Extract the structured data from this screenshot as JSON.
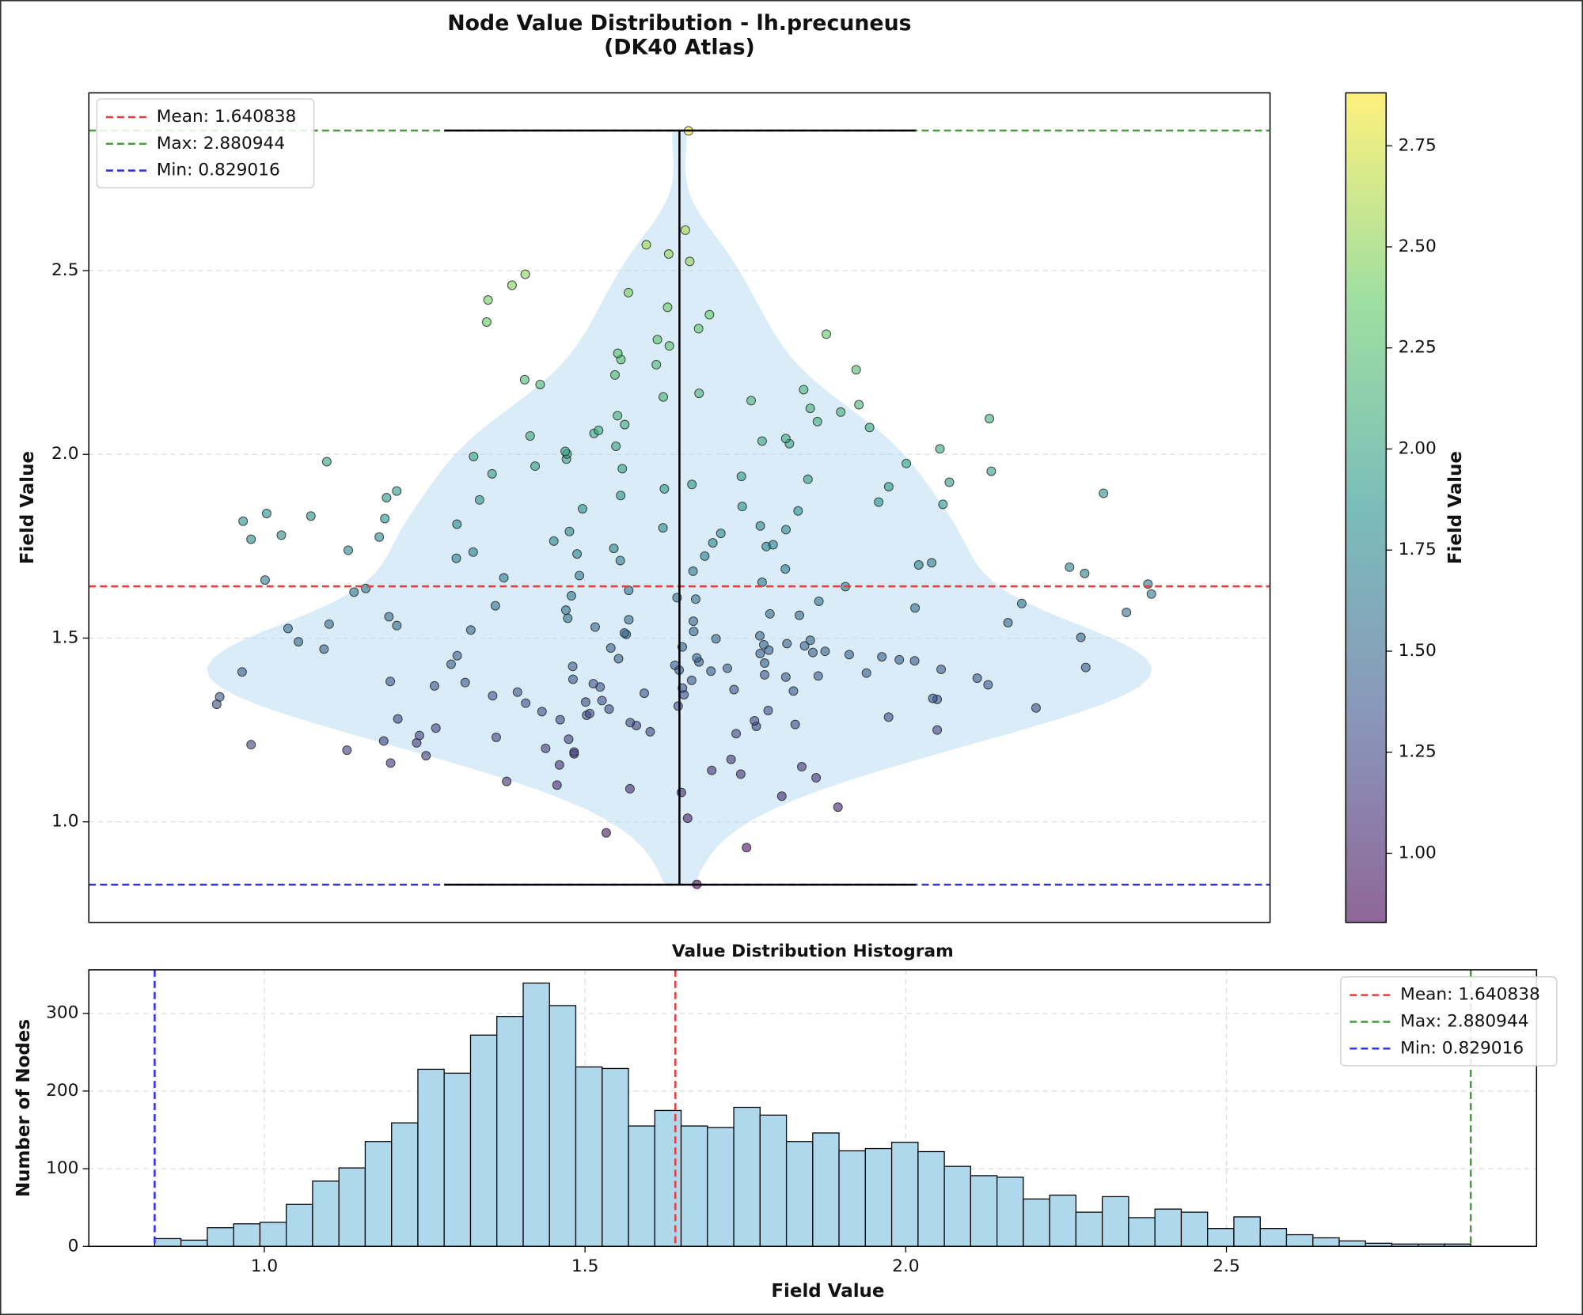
{
  "chart_data": [
    {
      "type": "violin",
      "title": "Node Value Distribution - lh.precuneus",
      "subtitle": "(DK40 Atlas)",
      "y_label": "Field Value",
      "ylim": [
        0.7264,
        2.9835
      ],
      "yticks": [
        {
          "value": 1,
          "label": "1.0"
        },
        1.5,
        {
          "value": 2,
          "label": "2.0"
        },
        2.5
      ],
      "grid": true,
      "legend": "upper left",
      "lines": [
        {
          "name": "Mean: 1.640838",
          "value": 1.640838,
          "color": "#e04040"
        },
        {
          "name": "Max: 2.880944",
          "value": 2.880944,
          "color": "#4a9a40"
        },
        {
          "name": "Min: 0.829016",
          "value": 0.829016,
          "color": "#3333dd"
        }
      ],
      "colorbar": {
        "label": "Field Value",
        "cmap": "viridis",
        "lim": [
          0.829016,
          2.880944
        ],
        "ticks": [
          {
            "value": 1,
            "label": "1.00"
          },
          1.25,
          {
            "value": 1.5,
            "label": "1.50"
          },
          1.75,
          {
            "value": 2,
            "label": "2.00"
          },
          2.25,
          {
            "value": 2.5,
            "label": "2.50"
          },
          2.75
        ]
      },
      "values": [
        0.83,
        0.93,
        0.97,
        1.01,
        1.04,
        1.07,
        1.08,
        1.09,
        1.1,
        1.11,
        1.12,
        1.13,
        1.14,
        1.15,
        1.155,
        1.16,
        1.17,
        1.18,
        1.185,
        1.19,
        1.195,
        1.2,
        1.21,
        1.215,
        1.22,
        1.225,
        1.23,
        1.235,
        1.24,
        1.245,
        1.25,
        1.255,
        1.26,
        1.262,
        1.265,
        1.27,
        1.275,
        1.278,
        1.28,
        1.285,
        1.29,
        1.295,
        1.3,
        1.303,
        1.307,
        1.31,
        1.315,
        1.32,
        1.323,
        1.326,
        1.33,
        1.333,
        1.336,
        1.34,
        1.343,
        1.346,
        1.35,
        1.353,
        1.356,
        1.36,
        1.364,
        1.367,
        1.37,
        1.373,
        1.376,
        1.379,
        1.382,
        1.385,
        1.388,
        1.391,
        1.394,
        1.397,
        1.4,
        1.405,
        1.408,
        1.41,
        1.413,
        1.415,
        1.418,
        1.42,
        1.423,
        1.426,
        1.429,
        1.432,
        1.435,
        1.438,
        1.441,
        1.444,
        1.446,
        1.449,
        1.452,
        1.455,
        1.458,
        1.461,
        1.464,
        1.467,
        1.47,
        1.473,
        1.476,
        1.479,
        1.482,
        1.485,
        1.49,
        1.494,
        1.498,
        1.502,
        1.506,
        1.51,
        1.514,
        1.518,
        1.522,
        1.526,
        1.53,
        1.534,
        1.538,
        1.542,
        1.546,
        1.55,
        1.554,
        1.558,
        1.562,
        1.566,
        1.57,
        1.576,
        1.582,
        1.588,
        1.594,
        1.6,
        1.606,
        1.61,
        1.615,
        1.62,
        1.625,
        1.63,
        1.635,
        1.64,
        1.647,
        1.652,
        1.658,
        1.664,
        1.67,
        1.676,
        1.682,
        1.688,
        1.693,
        1.699,
        1.705,
        1.711,
        1.717,
        1.723,
        1.729,
        1.734,
        1.739,
        1.744,
        1.749,
        1.754,
        1.759,
        1.764,
        1.769,
        1.775,
        1.78,
        1.785,
        1.79,
        1.795,
        1.8,
        1.805,
        1.81,
        1.818,
        1.825,
        1.832,
        1.839,
        1.846,
        1.852,
        1.858,
        1.864,
        1.87,
        1.876,
        1.882,
        1.888,
        1.894,
        1.9,
        1.906,
        1.912,
        1.918,
        1.924,
        1.932,
        1.94,
        1.947,
        1.954,
        1.961,
        1.968,
        1.975,
        1.98,
        1.987,
        1.994,
        2.001,
        2.008,
        2.015,
        2.022,
        2.029,
        2.036,
        2.043,
        2.05,
        2.057,
        2.065,
        2.073,
        2.081,
        2.089,
        2.097,
        2.105,
        2.115,
        2.125,
        2.135,
        2.146,
        2.156,
        2.166,
        2.176,
        2.19,
        2.203,
        2.216,
        2.23,
        2.244,
        2.258,
        2.275,
        2.295,
        2.312,
        2.327,
        2.342,
        2.36,
        2.38,
        2.4,
        2.42,
        2.44,
        2.46,
        2.49,
        2.525,
        2.545,
        2.57,
        2.61,
        2.88
      ]
    },
    {
      "type": "histogram",
      "title": "Value Distribution Histogram",
      "x_label": "Field Value",
      "y_label": "Number of Nodes",
      "color": "#b0d8ec",
      "xlim": [
        0.7264,
        2.9835
      ],
      "ylim": [
        0,
        356
      ],
      "xticks": [
        {
          "value": 1,
          "label": "1.0"
        },
        1.5,
        {
          "value": 2,
          "label": "2.0"
        },
        2.5
      ],
      "yticks": [
        0,
        100,
        200,
        300
      ],
      "grid": true,
      "legend": "upper right",
      "lines": [
        {
          "name": "Mean: 1.640838",
          "value": 1.640838,
          "color": "#e04040"
        },
        {
          "name": "Max: 2.880944",
          "value": 2.880944,
          "color": "#4a9a40"
        },
        {
          "name": "Min: 0.829016",
          "value": 0.829016,
          "color": "#3333dd"
        }
      ],
      "bins": [
        0.829,
        0.87,
        0.9111,
        0.9521,
        0.9932,
        1.0342,
        1.0752,
        1.1163,
        1.1573,
        1.1984,
        1.2394,
        1.2804,
        1.3215,
        1.3625,
        1.4036,
        1.4446,
        1.4856,
        1.5267,
        1.5677,
        1.6088,
        1.6498,
        1.6908,
        1.7319,
        1.7729,
        1.814,
        1.855,
        1.896,
        1.9371,
        1.9781,
        2.0192,
        2.0602,
        2.1012,
        2.1423,
        2.1833,
        2.2244,
        2.2654,
        2.3064,
        2.3475,
        2.3885,
        2.4296,
        2.4706,
        2.5116,
        2.5527,
        2.5937,
        2.6348,
        2.6758,
        2.7168,
        2.7579,
        2.7989,
        2.84,
        2.8809
      ],
      "values": [
        10,
        8,
        24,
        29,
        31,
        54,
        84,
        101,
        135,
        159,
        228,
        223,
        272,
        296,
        339,
        310,
        231,
        229,
        155,
        175,
        155,
        153,
        179,
        169,
        135,
        146,
        123,
        126,
        134,
        122,
        103,
        91,
        89,
        61,
        66,
        44,
        64,
        37,
        48,
        44,
        23,
        38,
        23,
        15,
        11,
        7,
        4,
        3,
        3,
        3
      ]
    }
  ]
}
